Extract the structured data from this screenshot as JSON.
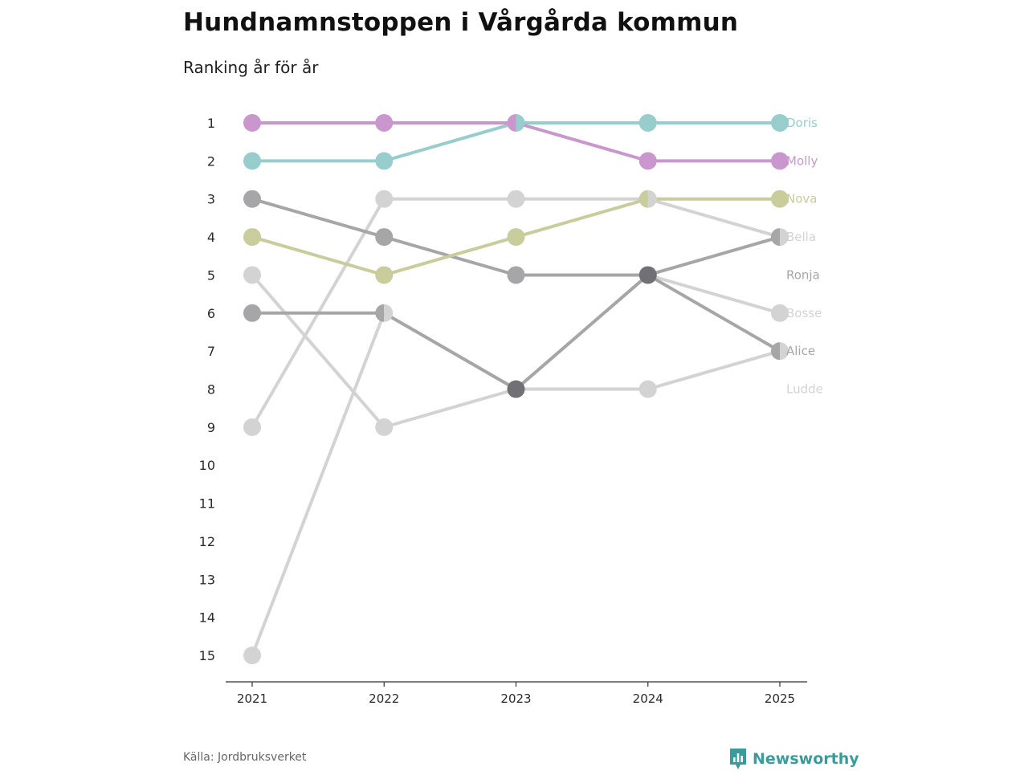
{
  "header": {
    "title": "Hundnamnstoppen i Vårgårda kommun",
    "subtitle": "Ranking år för år"
  },
  "footer": {
    "source": "Källa: Jordbruksverket",
    "brand": "Newsworthy",
    "brand_color": "#3a9c9a"
  },
  "chart_data": {
    "type": "line",
    "title": "Hundnamnstoppen i Vårgårda kommun",
    "subtitle": "Ranking år för år",
    "xlabel": "",
    "ylabel": "",
    "x": [
      "2021",
      "2022",
      "2023",
      "2024",
      "2025"
    ],
    "y_ticks": [
      "1",
      "2",
      "3",
      "4",
      "5",
      "6",
      "7",
      "8",
      "9",
      "10",
      "11",
      "12",
      "13",
      "14",
      "15"
    ],
    "ylim": [
      1,
      15
    ],
    "y_inverted": true,
    "series": [
      {
        "name": "Ludde",
        "color": "#d3d3d3",
        "values": [
          15,
          6,
          8,
          8,
          7
        ]
      },
      {
        "name": "Bosse",
        "color": "#d3d3d3",
        "values": [
          5,
          9,
          8,
          5,
          6
        ]
      },
      {
        "name": "Bella",
        "color": "#d3d3d3",
        "values": [
          9,
          3,
          3,
          3,
          4
        ]
      },
      {
        "name": "Alice",
        "color": "#a6a6a8",
        "values": [
          6,
          6,
          8,
          5,
          7
        ]
      },
      {
        "name": "Ronja",
        "color": "#a6a6a8",
        "values": [
          3,
          4,
          5,
          5,
          4
        ]
      },
      {
        "name": "Nova",
        "color": "#c9cc9b",
        "values": [
          4,
          5,
          4,
          3,
          3
        ]
      },
      {
        "name": "Doris",
        "color": "#98cdcd",
        "values": [
          2,
          2,
          1,
          1,
          1
        ]
      },
      {
        "name": "Molly",
        "color": "#c997cd",
        "values": [
          1,
          1,
          1,
          2,
          2
        ]
      }
    ],
    "end_labels": [
      {
        "name": "Doris",
        "rank": 1,
        "color": "#98cdcd"
      },
      {
        "name": "Molly",
        "rank": 2,
        "color": "#c997cd"
      },
      {
        "name": "Nova",
        "rank": 3,
        "color": "#c9cc9b"
      },
      {
        "name": "Bella",
        "rank": 4,
        "color": "#d3d3d3"
      },
      {
        "name": "Ronja",
        "rank": 5,
        "color": "#a6a6a8"
      },
      {
        "name": "Bosse",
        "rank": 6,
        "color": "#d3d3d3"
      },
      {
        "name": "Alice",
        "rank": 7,
        "color": "#a6a6a8"
      },
      {
        "name": "Ludde",
        "rank": 8,
        "color": "#d3d3d3"
      }
    ],
    "overlap_color": "#707075",
    "axis_color": "#333333",
    "tick_label_color": "#2b2b2b"
  }
}
